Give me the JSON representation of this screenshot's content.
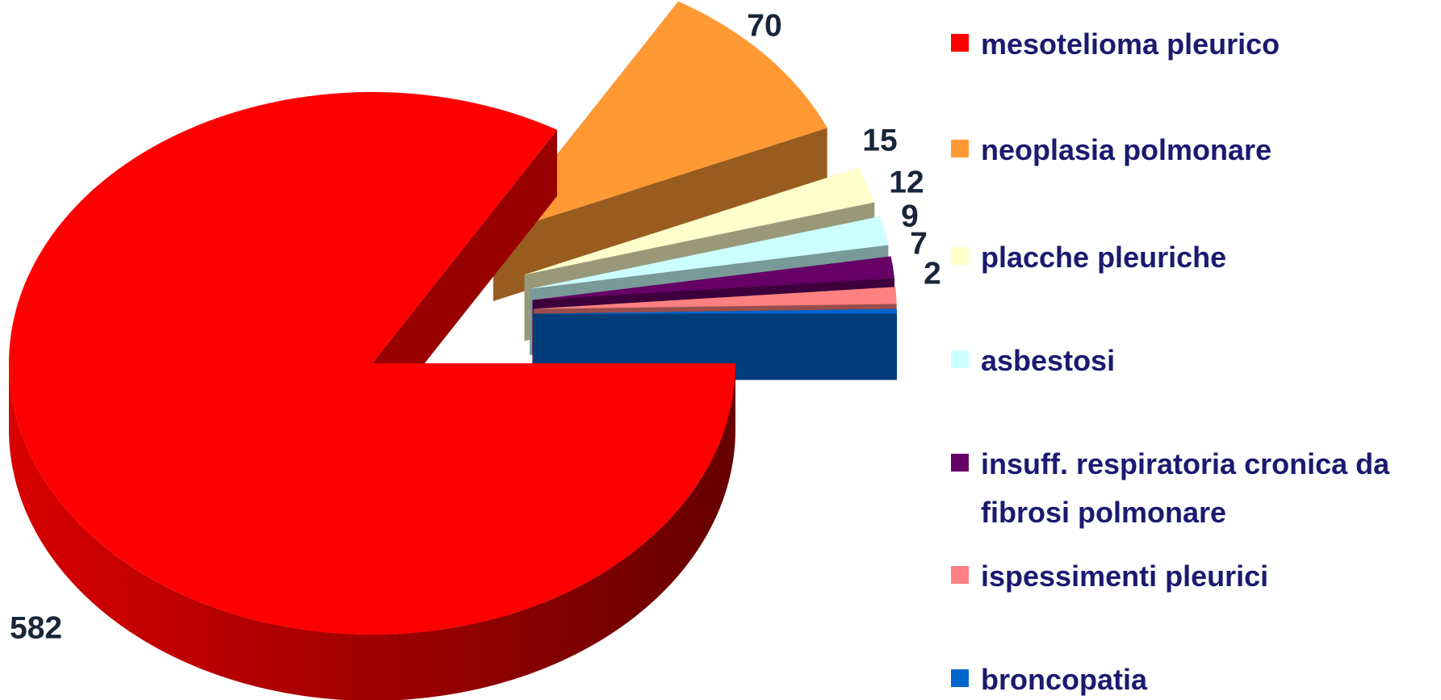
{
  "chart_data": {
    "type": "pie",
    "categories": [
      "mesotelioma pleurico",
      "neoplasia polmonare",
      "placche pleuriche",
      "asbestosi",
      "insuff. respiratoria cronica da fibrosi polmonare",
      "ispessimenti pleurici",
      "broncopatia"
    ],
    "values": [
      582,
      70,
      15,
      12,
      9,
      7,
      2
    ],
    "colors": [
      "#ff0000",
      "#ff9933",
      "#ffffcc",
      "#ccffff",
      "#660066",
      "#ff8080",
      "#0066cc"
    ]
  }
}
